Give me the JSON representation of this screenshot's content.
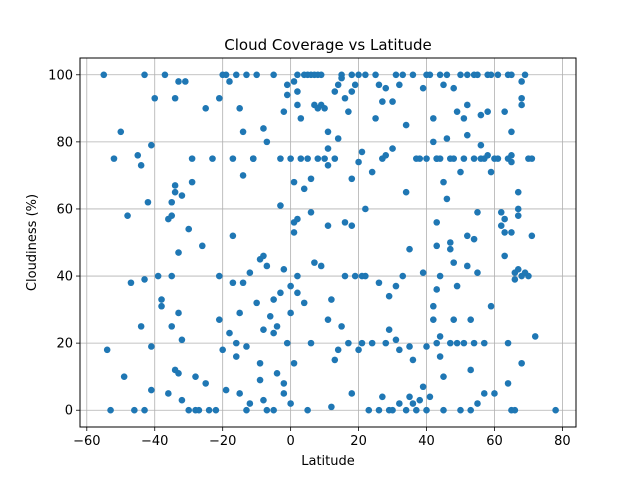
{
  "chart_data": {
    "type": "scatter",
    "title": "Cloud Coverage vs Latitude",
    "xlabel": "Latitude",
    "ylabel": "Cloudiness (%)",
    "xlim": [
      -62,
      84
    ],
    "ylim": [
      -5,
      105
    ],
    "x_ticks": [
      -60,
      -40,
      -20,
      0,
      20,
      40,
      60,
      80
    ],
    "y_ticks": [
      0,
      20,
      40,
      60,
      80,
      100
    ],
    "grid": true,
    "marker_color": "#1f77b4",
    "points": [
      [
        -55,
        100
      ],
      [
        -54,
        18
      ],
      [
        -53,
        0
      ],
      [
        -52,
        75
      ],
      [
        -50,
        83
      ],
      [
        -49,
        10
      ],
      [
        -48,
        58
      ],
      [
        -47,
        38
      ],
      [
        -46,
        0
      ],
      [
        -45,
        76
      ],
      [
        -44,
        73
      ],
      [
        -44,
        25
      ],
      [
        -43,
        100
      ],
      [
        -43,
        0
      ],
      [
        -43,
        39
      ],
      [
        -42,
        62
      ],
      [
        -41,
        79
      ],
      [
        -41,
        19
      ],
      [
        -41,
        6
      ],
      [
        -40,
        93
      ],
      [
        -39,
        40
      ],
      [
        -38,
        31
      ],
      [
        -38,
        33
      ],
      [
        -37,
        100
      ],
      [
        -36,
        5
      ],
      [
        -36,
        57
      ],
      [
        -35,
        62
      ],
      [
        -35,
        58
      ],
      [
        -35,
        40
      ],
      [
        -35,
        25
      ],
      [
        -34,
        12
      ],
      [
        -34,
        65
      ],
      [
        -34,
        67
      ],
      [
        -34,
        93
      ],
      [
        -33,
        11
      ],
      [
        -33,
        47
      ],
      [
        -33,
        29
      ],
      [
        -33,
        98
      ],
      [
        -32,
        21
      ],
      [
        -32,
        3
      ],
      [
        -32,
        64
      ],
      [
        -31,
        98
      ],
      [
        -30,
        54
      ],
      [
        -30,
        0
      ],
      [
        -29,
        75
      ],
      [
        -29,
        68
      ],
      [
        -28,
        0
      ],
      [
        -28,
        10
      ],
      [
        -27,
        0
      ],
      [
        -26,
        49
      ],
      [
        -25,
        90
      ],
      [
        -25,
        8
      ],
      [
        -24,
        0
      ],
      [
        -23,
        75
      ],
      [
        -22,
        0
      ],
      [
        -21,
        93
      ],
      [
        -21,
        40
      ],
      [
        -21,
        27
      ],
      [
        -20,
        100
      ],
      [
        -20,
        18
      ],
      [
        -19,
        100
      ],
      [
        -19,
        6
      ],
      [
        -18,
        98
      ],
      [
        -18,
        23
      ],
      [
        -17,
        75
      ],
      [
        -17,
        52
      ],
      [
        -17,
        38
      ],
      [
        -16,
        100
      ],
      [
        -16,
        20
      ],
      [
        -16,
        16
      ],
      [
        -15,
        90
      ],
      [
        -15,
        29
      ],
      [
        -15,
        5
      ],
      [
        -14,
        70
      ],
      [
        -14,
        83
      ],
      [
        -14,
        38
      ],
      [
        -13,
        0
      ],
      [
        -13,
        100
      ],
      [
        -13,
        19
      ],
      [
        -12,
        41
      ],
      [
        -12,
        2
      ],
      [
        -11,
        75
      ],
      [
        -11,
        75
      ],
      [
        -10,
        100
      ],
      [
        -10,
        32
      ],
      [
        -9,
        14
      ],
      [
        -9,
        45
      ],
      [
        -9,
        9
      ],
      [
        -8,
        84
      ],
      [
        -8,
        46
      ],
      [
        -8,
        24
      ],
      [
        -8,
        3
      ],
      [
        -7,
        0
      ],
      [
        -7,
        80
      ],
      [
        -7,
        43
      ],
      [
        -6,
        28
      ],
      [
        -5,
        100
      ],
      [
        -5,
        23
      ],
      [
        -5,
        0
      ],
      [
        -5,
        33
      ],
      [
        -4,
        25
      ],
      [
        -4,
        11
      ],
      [
        -3,
        75
      ],
      [
        -3,
        61
      ],
      [
        -3,
        35
      ],
      [
        -2,
        5
      ],
      [
        -2,
        42
      ],
      [
        -2,
        8
      ],
      [
        -2,
        89
      ],
      [
        -1,
        97
      ],
      [
        -1,
        94
      ],
      [
        -1,
        20
      ],
      [
        0,
        2
      ],
      [
        0,
        75
      ],
      [
        0,
        37
      ],
      [
        0,
        29
      ],
      [
        1,
        56
      ],
      [
        1,
        53
      ],
      [
        1,
        68
      ],
      [
        1,
        14
      ],
      [
        1,
        98
      ],
      [
        2,
        100
      ],
      [
        2,
        95
      ],
      [
        2,
        91
      ],
      [
        2,
        40
      ],
      [
        2,
        35
      ],
      [
        2,
        57
      ],
      [
        3,
        87
      ],
      [
        3,
        75
      ],
      [
        4,
        100
      ],
      [
        4,
        32
      ],
      [
        4,
        66
      ],
      [
        5,
        0
      ],
      [
        5,
        75
      ],
      [
        5,
        100
      ],
      [
        6,
        100
      ],
      [
        6,
        59
      ],
      [
        6,
        69
      ],
      [
        6,
        20
      ],
      [
        7,
        44
      ],
      [
        7,
        91
      ],
      [
        7,
        100
      ],
      [
        8,
        100
      ],
      [
        8,
        75
      ],
      [
        8,
        90
      ],
      [
        9,
        43
      ],
      [
        9,
        100
      ],
      [
        9,
        91
      ],
      [
        10,
        90
      ],
      [
        10,
        75
      ],
      [
        11,
        83
      ],
      [
        11,
        78
      ],
      [
        11,
        55
      ],
      [
        11,
        27
      ],
      [
        11,
        73
      ],
      [
        12,
        33
      ],
      [
        12,
        1
      ],
      [
        13,
        75
      ],
      [
        13,
        95
      ],
      [
        13,
        15
      ],
      [
        14,
        97
      ],
      [
        14,
        18
      ],
      [
        14,
        81
      ],
      [
        15,
        25
      ],
      [
        15,
        100
      ],
      [
        15,
        99
      ],
      [
        16,
        40
      ],
      [
        16,
        93
      ],
      [
        16,
        56
      ],
      [
        17,
        20
      ],
      [
        17,
        89
      ],
      [
        18,
        100
      ],
      [
        18,
        95
      ],
      [
        18,
        69
      ],
      [
        18,
        5
      ],
      [
        18,
        55
      ],
      [
        19,
        40
      ],
      [
        19,
        97
      ],
      [
        20,
        18
      ],
      [
        20,
        74
      ],
      [
        20,
        100
      ],
      [
        21,
        40
      ],
      [
        21,
        77
      ],
      [
        21,
        20
      ],
      [
        22,
        100
      ],
      [
        22,
        40
      ],
      [
        22,
        60
      ],
      [
        23,
        0
      ],
      [
        24,
        20
      ],
      [
        24,
        71
      ],
      [
        25,
        87
      ],
      [
        25,
        100
      ],
      [
        26,
        97
      ],
      [
        26,
        38
      ],
      [
        26,
        0
      ],
      [
        27,
        92
      ],
      [
        27,
        75
      ],
      [
        27,
        4
      ],
      [
        28,
        20
      ],
      [
        28,
        96
      ],
      [
        28,
        76
      ],
      [
        29,
        0
      ],
      [
        29,
        34
      ],
      [
        29,
        24
      ],
      [
        30,
        92
      ],
      [
        30,
        78
      ],
      [
        30,
        0
      ],
      [
        31,
        100
      ],
      [
        31,
        21
      ],
      [
        31,
        37
      ],
      [
        32,
        97
      ],
      [
        32,
        2
      ],
      [
        32,
        18
      ],
      [
        33,
        40
      ],
      [
        33,
        100
      ],
      [
        34,
        0
      ],
      [
        34,
        65
      ],
      [
        34,
        85
      ],
      [
        35,
        48
      ],
      [
        35,
        4
      ],
      [
        35,
        19
      ],
      [
        36,
        100
      ],
      [
        36,
        15
      ],
      [
        36,
        2
      ],
      [
        37,
        75
      ],
      [
        37,
        0
      ],
      [
        38,
        75
      ],
      [
        38,
        3
      ],
      [
        39,
        96
      ],
      [
        39,
        41
      ],
      [
        39,
        7
      ],
      [
        40,
        100
      ],
      [
        40,
        75
      ],
      [
        40,
        19
      ],
      [
        40,
        0
      ],
      [
        41,
        4
      ],
      [
        41,
        100
      ],
      [
        42,
        87
      ],
      [
        42,
        80
      ],
      [
        42,
        31
      ],
      [
        42,
        27
      ],
      [
        43,
        75
      ],
      [
        43,
        75
      ],
      [
        43,
        36
      ],
      [
        43,
        20
      ],
      [
        43,
        49
      ],
      [
        43,
        56
      ],
      [
        44,
        100
      ],
      [
        44,
        75
      ],
      [
        44,
        40
      ],
      [
        44,
        22
      ],
      [
        44,
        16
      ],
      [
        45,
        97
      ],
      [
        45,
        68
      ],
      [
        45,
        10
      ],
      [
        45,
        0
      ],
      [
        46,
        100
      ],
      [
        46,
        81
      ],
      [
        46,
        63
      ],
      [
        47,
        20
      ],
      [
        47,
        75
      ],
      [
        47,
        48
      ],
      [
        47,
        50
      ],
      [
        48,
        75
      ],
      [
        48,
        44
      ],
      [
        48,
        27
      ],
      [
        48,
        96
      ],
      [
        49,
        89
      ],
      [
        49,
        20
      ],
      [
        49,
        37
      ],
      [
        50,
        100
      ],
      [
        50,
        0
      ],
      [
        50,
        71
      ],
      [
        51,
        75
      ],
      [
        51,
        87
      ],
      [
        51,
        20
      ],
      [
        52,
        100
      ],
      [
        52,
        91
      ],
      [
        52,
        82
      ],
      [
        52,
        52
      ],
      [
        52,
        43
      ],
      [
        53,
        12
      ],
      [
        53,
        27
      ],
      [
        53,
        0
      ],
      [
        54,
        20
      ],
      [
        54,
        75
      ],
      [
        54,
        51
      ],
      [
        54,
        100
      ],
      [
        55,
        41
      ],
      [
        55,
        59
      ],
      [
        55,
        100
      ],
      [
        55,
        2
      ],
      [
        56,
        75
      ],
      [
        56,
        79
      ],
      [
        56,
        88
      ],
      [
        57,
        5
      ],
      [
        57,
        20
      ],
      [
        57,
        75
      ],
      [
        58,
        89
      ],
      [
        58,
        76
      ],
      [
        58,
        100
      ],
      [
        59,
        31
      ],
      [
        59,
        71
      ],
      [
        59,
        100
      ],
      [
        60,
        75
      ],
      [
        60,
        5
      ],
      [
        61,
        100
      ],
      [
        61,
        75
      ],
      [
        62,
        59
      ],
      [
        62,
        55
      ],
      [
        63,
        53
      ],
      [
        63,
        46
      ],
      [
        63,
        89
      ],
      [
        63,
        57
      ],
      [
        64,
        75
      ],
      [
        64,
        100
      ],
      [
        64,
        20
      ],
      [
        64,
        8
      ],
      [
        65,
        100
      ],
      [
        65,
        74
      ],
      [
        65,
        76
      ],
      [
        65,
        83
      ],
      [
        65,
        0
      ],
      [
        65,
        53
      ],
      [
        66,
        0
      ],
      [
        66,
        39
      ],
      [
        66,
        41
      ],
      [
        67,
        65
      ],
      [
        67,
        58
      ],
      [
        67,
        42
      ],
      [
        67,
        60
      ],
      [
        68,
        91
      ],
      [
        68,
        93
      ],
      [
        68,
        40
      ],
      [
        68,
        14
      ],
      [
        68,
        98
      ],
      [
        69,
        100
      ],
      [
        69,
        41
      ],
      [
        70,
        75
      ],
      [
        70,
        40
      ],
      [
        71,
        52
      ],
      [
        71,
        75
      ],
      [
        72,
        22
      ],
      [
        78,
        0
      ]
    ]
  }
}
